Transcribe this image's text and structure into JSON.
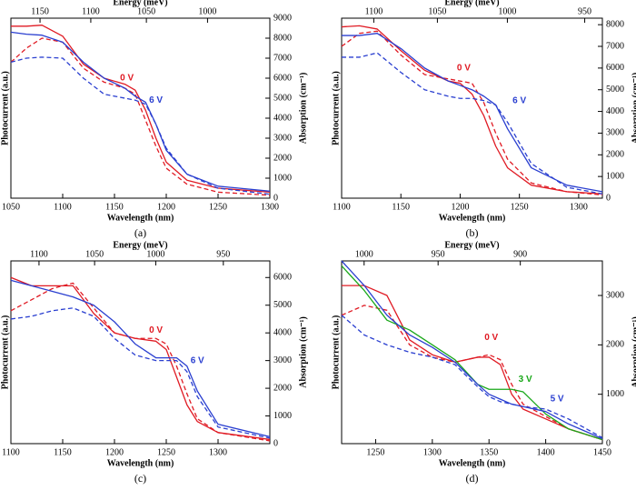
{
  "chart_data": [
    {
      "type": "line",
      "caption": "(a)",
      "xlabel": "Wavelength (nm)",
      "ylabel": "Photocurrent (a.u.)",
      "y2label": "Absorption (cm⁻¹)",
      "x2label": "Energy (meV)",
      "xlim": [
        1050,
        1300
      ],
      "xticks": [
        1050,
        1100,
        1150,
        1200,
        1250,
        1300
      ],
      "x2ticks": [
        1150,
        1100,
        1050,
        1000
      ],
      "y2lim": [
        0,
        9000
      ],
      "y2ticks": [
        0,
        1000,
        2000,
        3000,
        4000,
        5000,
        6000,
        7000,
        8000,
        9000
      ],
      "x": [
        1050,
        1065,
        1080,
        1100,
        1120,
        1140,
        1160,
        1170,
        1180,
        1190,
        1200,
        1220,
        1250,
        1300
      ],
      "series": [
        {
          "color": "#e01b24",
          "dash": false,
          "axis": "y2",
          "values": [
            8600,
            8600,
            8650,
            8100,
            6700,
            6000,
            5700,
            5400,
            4400,
            3000,
            1800,
            900,
            500,
            300
          ]
        },
        {
          "color": "#e01b24",
          "dash": true,
          "axis": "y2",
          "values": [
            6800,
            7500,
            8000,
            7800,
            6500,
            5800,
            5500,
            5200,
            3900,
            2600,
            1500,
            700,
            300,
            150
          ]
        },
        {
          "color": "#2a3fd0",
          "dash": false,
          "axis": "y2",
          "values": [
            8300,
            8200,
            8150,
            7800,
            6800,
            6000,
            5500,
            5100,
            4800,
            3700,
            2400,
            1200,
            600,
            350
          ]
        },
        {
          "color": "#2a3fd0",
          "dash": true,
          "axis": "y2",
          "values": [
            6800,
            7000,
            7050,
            7000,
            6000,
            5200,
            5000,
            4900,
            4700,
            3700,
            2500,
            1200,
            500,
            200
          ]
        }
      ],
      "annotations": [
        {
          "text": "0 V",
          "x": 1162,
          "y": 6000,
          "color": "#e01b24"
        },
        {
          "text": "6 V",
          "x": 1190,
          "y": 4900,
          "color": "#2a3fd0"
        }
      ]
    },
    {
      "type": "line",
      "caption": "(b)",
      "xlabel": "Wavelength (nm)",
      "ylabel": "Photocurrent (a.u.)",
      "y2label": "Absorption (cm⁻¹)",
      "x2label": "Energy (meV)",
      "xlim": [
        1100,
        1320
      ],
      "xticks": [
        1100,
        1150,
        1200,
        1250,
        1300
      ],
      "x2ticks": [
        1100,
        1050,
        1000,
        950
      ],
      "y2lim": [
        0,
        8300
      ],
      "y2ticks": [
        0,
        1000,
        2000,
        3000,
        4000,
        5000,
        6000,
        7000,
        8000
      ],
      "x": [
        1100,
        1115,
        1130,
        1150,
        1170,
        1190,
        1200,
        1210,
        1220,
        1230,
        1240,
        1260,
        1290,
        1320
      ],
      "series": [
        {
          "color": "#e01b24",
          "dash": false,
          "axis": "y2",
          "values": [
            7900,
            7950,
            7800,
            6800,
            5900,
            5400,
            5300,
            4800,
            3800,
            2400,
            1400,
            600,
            300,
            200
          ]
        },
        {
          "color": "#e01b24",
          "dash": true,
          "axis": "y2",
          "values": [
            7000,
            7600,
            7700,
            6600,
            5700,
            5500,
            5400,
            5300,
            4400,
            3000,
            1800,
            700,
            300,
            150
          ]
        },
        {
          "color": "#2a3fd0",
          "dash": false,
          "axis": "y2",
          "values": [
            7500,
            7500,
            7600,
            6900,
            6000,
            5400,
            5200,
            5000,
            4700,
            4300,
            3200,
            1400,
            600,
            300
          ]
        },
        {
          "color": "#2a3fd0",
          "dash": true,
          "axis": "y2",
          "values": [
            6500,
            6500,
            6700,
            5800,
            5000,
            4700,
            4600,
            4600,
            4500,
            4300,
            3500,
            1600,
            500,
            200
          ]
        }
      ],
      "annotations": [
        {
          "text": "0 V",
          "x": 1203,
          "y": 6000,
          "color": "#e01b24"
        },
        {
          "text": "6 V",
          "x": 1250,
          "y": 4500,
          "color": "#2a3fd0"
        }
      ]
    },
    {
      "type": "line",
      "caption": "(c)",
      "xlabel": "Wavelength (nm)",
      "ylabel": "Photocurrent (a.u.)",
      "y2label": "Absorption (cm⁻¹)",
      "x2label": "Energy (meV)",
      "xlim": [
        1100,
        1350
      ],
      "xticks": [
        1100,
        1150,
        1200,
        1250,
        1300
      ],
      "x2ticks": [
        1100,
        1050,
        1000,
        950
      ],
      "y2lim": [
        0,
        6600
      ],
      "y2ticks": [
        0,
        1000,
        2000,
        3000,
        4000,
        5000,
        6000
      ],
      "x": [
        1100,
        1120,
        1140,
        1160,
        1180,
        1200,
        1220,
        1240,
        1250,
        1260,
        1270,
        1280,
        1300,
        1350
      ],
      "series": [
        {
          "color": "#e01b24",
          "dash": false,
          "axis": "y2",
          "values": [
            6000,
            5700,
            5700,
            5700,
            4700,
            4000,
            3800,
            3700,
            3400,
            2400,
            1400,
            800,
            400,
            150
          ]
        },
        {
          "color": "#e01b24",
          "dash": true,
          "axis": "y2",
          "values": [
            4800,
            5200,
            5600,
            5800,
            4900,
            4000,
            3800,
            3800,
            3600,
            2800,
            1800,
            900,
            400,
            100
          ]
        },
        {
          "color": "#2a3fd0",
          "dash": false,
          "axis": "y2",
          "values": [
            5900,
            5700,
            5500,
            5300,
            5000,
            4400,
            3600,
            3100,
            3100,
            3100,
            2800,
            1900,
            700,
            250
          ]
        },
        {
          "color": "#2a3fd0",
          "dash": true,
          "axis": "y2",
          "values": [
            4500,
            4600,
            4800,
            4900,
            4600,
            3800,
            3200,
            3000,
            3000,
            3000,
            2600,
            1700,
            600,
            200
          ]
        }
      ],
      "annotations": [
        {
          "text": "0 V",
          "x": 1240,
          "y": 4100,
          "color": "#e01b24"
        },
        {
          "text": "6 V",
          "x": 1280,
          "y": 3000,
          "color": "#2a3fd0"
        }
      ]
    },
    {
      "type": "line",
      "caption": "(d)",
      "xlabel": "Wavelength (nm)",
      "ylabel": "Photocurrent (a.u.)",
      "y2label": "Absorption (cm⁻¹)",
      "x2label": "Energy (meV)",
      "xlim": [
        1220,
        1450
      ],
      "xticks": [
        1250,
        1300,
        1350,
        1400,
        1450
      ],
      "x2ticks": [
        1000,
        950,
        900
      ],
      "y2lim": [
        0,
        3700
      ],
      "y2ticks": [
        0,
        1000,
        2000,
        3000
      ],
      "x": [
        1220,
        1240,
        1260,
        1280,
        1300,
        1320,
        1340,
        1350,
        1360,
        1370,
        1380,
        1400,
        1420,
        1450
      ],
      "series": [
        {
          "color": "#e01b24",
          "dash": false,
          "axis": "y2",
          "values": [
            3200,
            3200,
            3000,
            2100,
            1800,
            1650,
            1750,
            1750,
            1600,
            1000,
            700,
            500,
            300,
            80
          ]
        },
        {
          "color": "#e01b24",
          "dash": true,
          "axis": "y2",
          "values": [
            2600,
            2800,
            2700,
            2000,
            1750,
            1650,
            1750,
            1800,
            1700,
            1200,
            800,
            550,
            300,
            80
          ]
        },
        {
          "color": "#1aa81a",
          "dash": false,
          "axis": "y2",
          "values": [
            3600,
            3100,
            2500,
            2300,
            2000,
            1700,
            1200,
            1100,
            1100,
            1100,
            1050,
            600,
            300,
            80
          ]
        },
        {
          "color": "#2a3fd0",
          "dash": false,
          "axis": "y2",
          "values": [
            3700,
            3200,
            2600,
            2200,
            1950,
            1650,
            1200,
            1000,
            900,
            800,
            750,
            650,
            400,
            100
          ]
        },
        {
          "color": "#2a3fd0",
          "dash": true,
          "axis": "y2",
          "values": [
            2600,
            2200,
            2000,
            1850,
            1750,
            1600,
            1150,
            950,
            850,
            800,
            750,
            700,
            500,
            120
          ]
        }
      ],
      "annotations": [
        {
          "text": "0 V",
          "x": 1352,
          "y": 2150,
          "color": "#e01b24"
        },
        {
          "text": "3 V",
          "x": 1382,
          "y": 1300,
          "color": "#1aa81a"
        },
        {
          "text": "5 V",
          "x": 1410,
          "y": 900,
          "color": "#2a3fd0"
        }
      ]
    }
  ]
}
